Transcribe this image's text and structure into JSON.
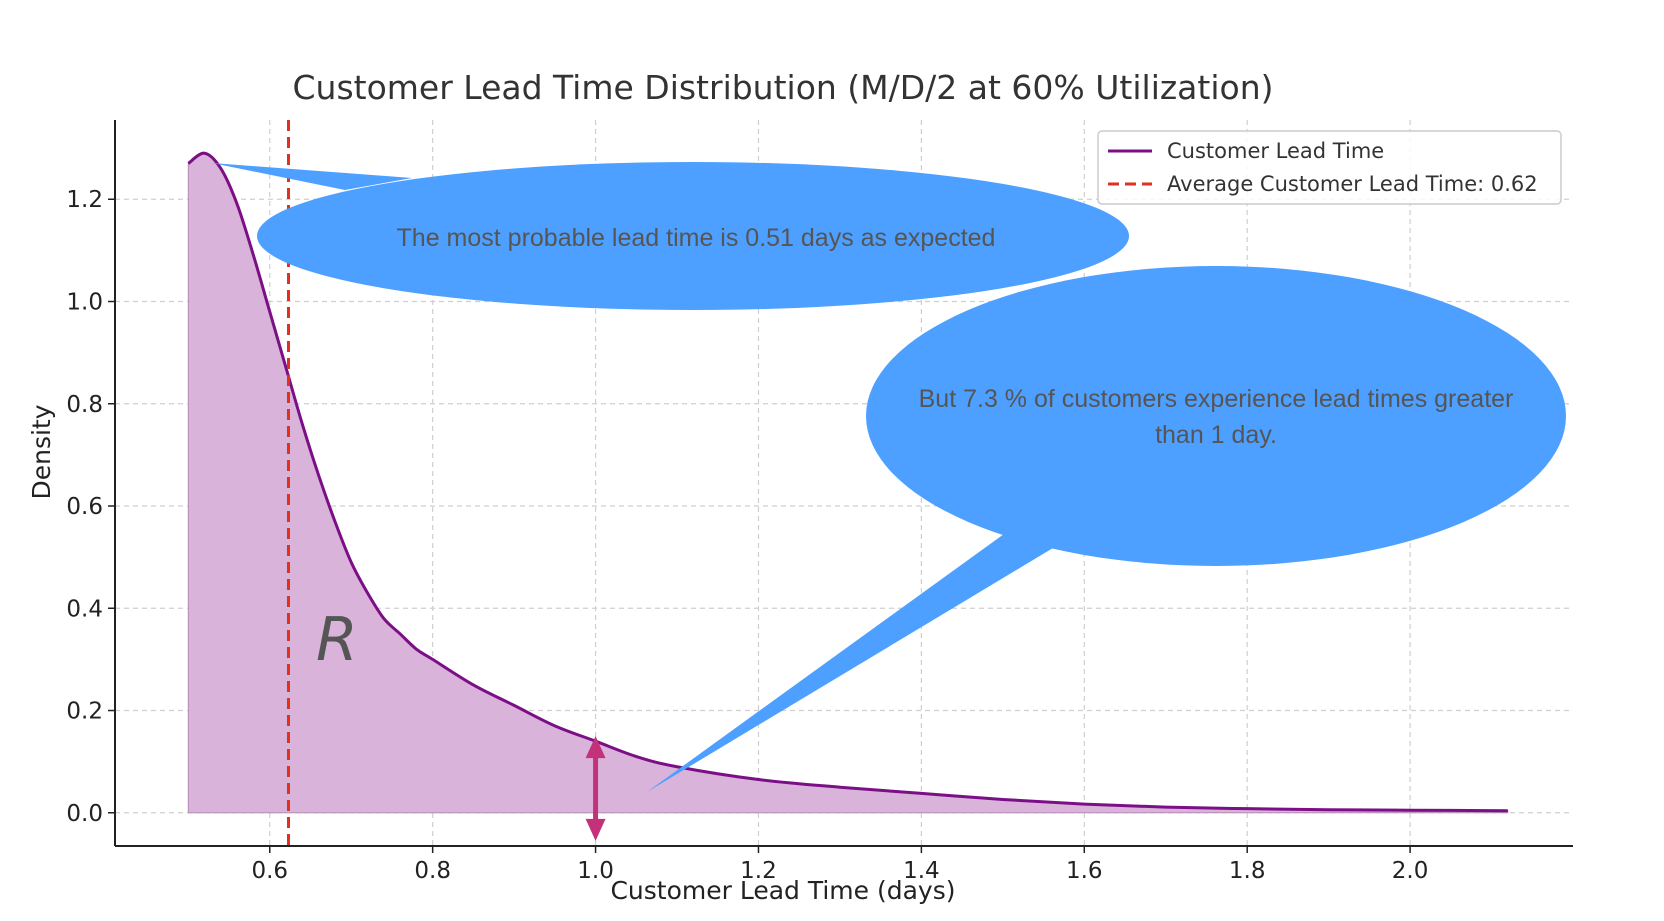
{
  "chart_data": {
    "type": "area",
    "title": "Customer Lead Time Distribution (M/D/2 at 60% Utilization)",
    "xlabel": "Customer Lead Time (days)",
    "ylabel": "Density",
    "xlim": [
      0.41,
      2.2
    ],
    "ylim": [
      -0.065,
      1.355
    ],
    "xticks": [
      0.6,
      0.8,
      1.0,
      1.2,
      1.4,
      1.6,
      1.8,
      2.0
    ],
    "xtick_labels": [
      "0.6",
      "0.8",
      "1.0",
      "1.2",
      "1.4",
      "1.6",
      "1.8",
      "2.0"
    ],
    "yticks": [
      0.0,
      0.2,
      0.4,
      0.6,
      0.8,
      1.0,
      1.2
    ],
    "ytick_labels": [
      "0.0",
      "0.2",
      "0.4",
      "0.6",
      "0.8",
      "1.0",
      "1.2"
    ],
    "grid": true,
    "legend_position": "top-right",
    "series": [
      {
        "name": "Customer Lead Time",
        "color": "#7b0f86",
        "fill_color": "#d9b3da",
        "x": [
          0.5,
          0.52,
          0.54,
          0.56,
          0.58,
          0.6,
          0.62,
          0.64,
          0.66,
          0.68,
          0.7,
          0.72,
          0.74,
          0.76,
          0.78,
          0.8,
          0.85,
          0.9,
          0.95,
          1.0,
          1.05,
          1.1,
          1.2,
          1.3,
          1.4,
          1.5,
          1.6,
          1.7,
          1.8,
          1.9,
          2.0,
          2.12
        ],
        "y": [
          1.27,
          1.29,
          1.26,
          1.19,
          1.09,
          0.98,
          0.87,
          0.76,
          0.66,
          0.57,
          0.49,
          0.43,
          0.38,
          0.35,
          0.32,
          0.3,
          0.25,
          0.21,
          0.17,
          0.14,
          0.11,
          0.09,
          0.065,
          0.05,
          0.038,
          0.026,
          0.017,
          0.011,
          0.008,
          0.006,
          0.005,
          0.004
        ]
      }
    ],
    "reference_lines": [
      {
        "name": "Average Customer Lead Time: 0.62",
        "x": 0.623,
        "color": "#e03020",
        "style": "dashed"
      }
    ],
    "annotations": {
      "region_label": "R",
      "arrow": {
        "x": 1.0,
        "y_from": -0.055,
        "y_to": 0.15,
        "color": "#c4317b"
      },
      "callouts": [
        {
          "lines": [
            "The most probable lead time is 0.51 days as expected"
          ],
          "color": "#4da0ff"
        },
        {
          "lines": [
            "But 7.3 % of customers experience lead times greater",
            "than 1 day."
          ],
          "color": "#4da0ff"
        }
      ]
    }
  }
}
